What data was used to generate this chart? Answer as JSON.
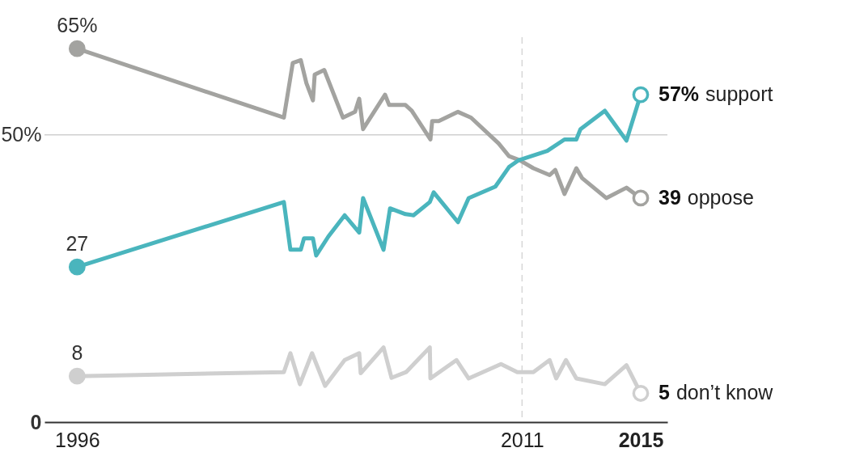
{
  "chart_data": {
    "type": "line",
    "series": [
      {
        "name": "oppose",
        "color": "#a3a3a0",
        "x": [
          1996,
          2002.97,
          2003.27,
          2003.54,
          2003.73,
          2003.95,
          2004.01,
          2004.33,
          2004.96,
          2005.37,
          2005.51,
          2005.64,
          2006.38,
          2006.52,
          2007.07,
          2007.28,
          2007.91,
          2007.97,
          2008.19,
          2008.84,
          2009.28,
          2010.21,
          2010.56,
          2010.92,
          2011.38,
          2011.93,
          2012.12,
          2012.43,
          2012.83,
          2013.02,
          2013.84,
          2014.52,
          2015
        ],
        "values": [
          65,
          53,
          62.5,
          63,
          59,
          56,
          60.5,
          61.3,
          53,
          54,
          56.3,
          51,
          57,
          55.2,
          55.2,
          54.2,
          49.2,
          52.4,
          52.4,
          54,
          53,
          48.5,
          46.3,
          45.6,
          44.2,
          43,
          43.9,
          39.7,
          44.2,
          42.5,
          39,
          40.8,
          39
        ],
        "value_labels": [
          "65%",
          null,
          null,
          null,
          null,
          null,
          null,
          null,
          null,
          null,
          null,
          null,
          null,
          null,
          null,
          null,
          null,
          null,
          null,
          null,
          null,
          null,
          null,
          null,
          null,
          null,
          null,
          null,
          null,
          null,
          null,
          null,
          "39"
        ]
      },
      {
        "name": "support",
        "color": "#4ab5bd",
        "x": [
          1996,
          2002.97,
          2003.19,
          2003.54,
          2003.65,
          2003.95,
          2004.06,
          2004.47,
          2005.02,
          2005.51,
          2005.64,
          2006.33,
          2006.55,
          2007.07,
          2007.34,
          2007.89,
          2008.02,
          2008.84,
          2009.2,
          2010.1,
          2010.56,
          2010.89,
          2011.85,
          2012.43,
          2012.83,
          2012.97,
          2013.79,
          2014.52,
          2015
        ],
        "values": [
          27,
          38.3,
          30,
          30,
          32,
          32,
          29,
          32.3,
          36,
          33,
          39,
          30,
          37.2,
          36.2,
          36,
          38.3,
          40,
          34.8,
          39,
          41,
          44.4,
          45.6,
          47.2,
          49.2,
          49.2,
          51,
          54.2,
          49,
          57
        ],
        "value_labels": [
          "27",
          null,
          null,
          null,
          null,
          null,
          null,
          null,
          null,
          null,
          null,
          null,
          null,
          null,
          null,
          null,
          null,
          null,
          null,
          null,
          null,
          null,
          null,
          null,
          null,
          null,
          null,
          null,
          "57%"
        ]
      },
      {
        "name": "don’t know",
        "color": "#cfcfcf",
        "x": [
          1996,
          2002.97,
          2003.19,
          2003.51,
          2003.92,
          2004.36,
          2005.02,
          2005.51,
          2005.56,
          2006.33,
          2006.6,
          2007.09,
          2007.89,
          2007.91,
          2008.79,
          2009.2,
          2010.29,
          2010.84,
          2011.38,
          2011.93,
          2012.15,
          2012.48,
          2012.83,
          2013.79,
          2014.52,
          2015
        ],
        "values": [
          8,
          8.7,
          12,
          6.6,
          12,
          6.3,
          10.8,
          12,
          8.5,
          13,
          7.7,
          8.7,
          13,
          7.6,
          10.8,
          7.6,
          10.1,
          8.7,
          8.7,
          10.8,
          7.6,
          10.8,
          7.6,
          6.6,
          9.9,
          5
        ],
        "value_labels": [
          "8",
          null,
          null,
          null,
          null,
          null,
          null,
          null,
          null,
          null,
          null,
          null,
          null,
          null,
          null,
          null,
          null,
          null,
          null,
          null,
          null,
          null,
          null,
          null,
          null,
          "5"
        ]
      }
    ],
    "xlim": [
      1994.9,
      2015.9
    ],
    "xticks": [
      1996,
      2011,
      2015
    ],
    "ylim": [
      0,
      67
    ],
    "yticks": [
      0,
      {
        "value": 50,
        "label": "50%"
      }
    ],
    "legend": false,
    "ref_lines": [
      {
        "axis": "x",
        "value": 2011,
        "color": "#d6d6d6",
        "line_style": "dashed"
      },
      {
        "axis": "y",
        "value": 50,
        "color": "#cfcfcf",
        "line_style": "solid"
      }
    ]
  }
}
